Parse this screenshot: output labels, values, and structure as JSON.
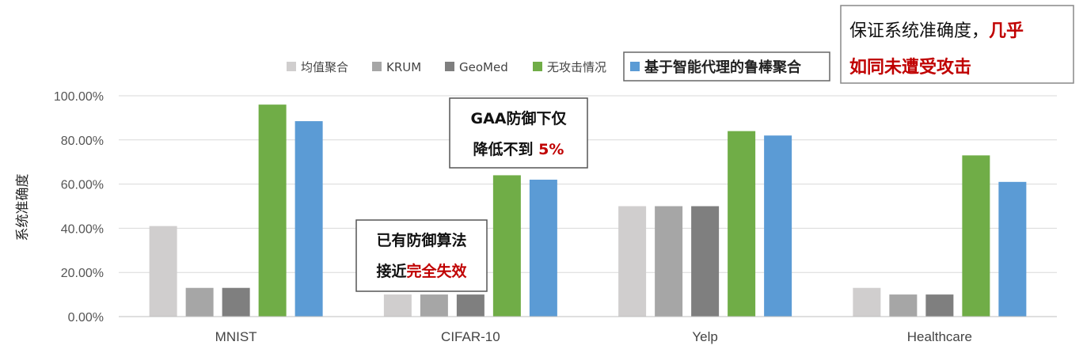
{
  "chart_data": {
    "type": "bar",
    "ylabel": "系统准确度",
    "xlabel": "",
    "ylim": [
      0,
      1
    ],
    "y_ticks": [
      "0.00%",
      "20.00%",
      "40.00%",
      "60.00%",
      "80.00%",
      "100.00%"
    ],
    "categories": [
      "MNIST",
      "CIFAR-10",
      "Yelp",
      "Healthcare"
    ],
    "legend_position": "top",
    "grid": true,
    "series": [
      {
        "name": "均值聚合",
        "color": "#d0cece",
        "values": [
          0.41,
          0.1,
          0.5,
          0.13
        ]
      },
      {
        "name": "KRUM",
        "color": "#a6a6a6",
        "values": [
          0.13,
          0.1,
          0.5,
          0.1
        ]
      },
      {
        "name": "GeoMed",
        "color": "#7f7f7f",
        "values": [
          0.13,
          0.1,
          0.5,
          0.1
        ]
      },
      {
        "name": "无攻击情况",
        "color": "#70ad47",
        "values": [
          0.96,
          0.64,
          0.84,
          0.73
        ]
      },
      {
        "name": "基于智能代理的鲁棒聚合",
        "color": "#5b9bd5",
        "values": [
          0.885,
          0.62,
          0.82,
          0.61
        ]
      }
    ],
    "highlighted_series": "基于智能代理的鲁棒聚合",
    "annotations": [
      {
        "lines": [
          [
            {
              "text": "GAA防御下仅",
              "red": false
            }
          ],
          [
            {
              "text": "降低不到 ",
              "red": false
            },
            {
              "text": "5%",
              "red": true
            }
          ]
        ]
      },
      {
        "lines": [
          [
            {
              "text": "已有防御算法",
              "red": false
            }
          ],
          [
            {
              "text": "接近",
              "red": false
            },
            {
              "text": "完全失效",
              "red": true
            }
          ]
        ]
      }
    ],
    "top_right_note": {
      "line1_a": "保证系统准确度，",
      "line1_b": "几乎",
      "line2": "如同未遭受攻击"
    }
  }
}
